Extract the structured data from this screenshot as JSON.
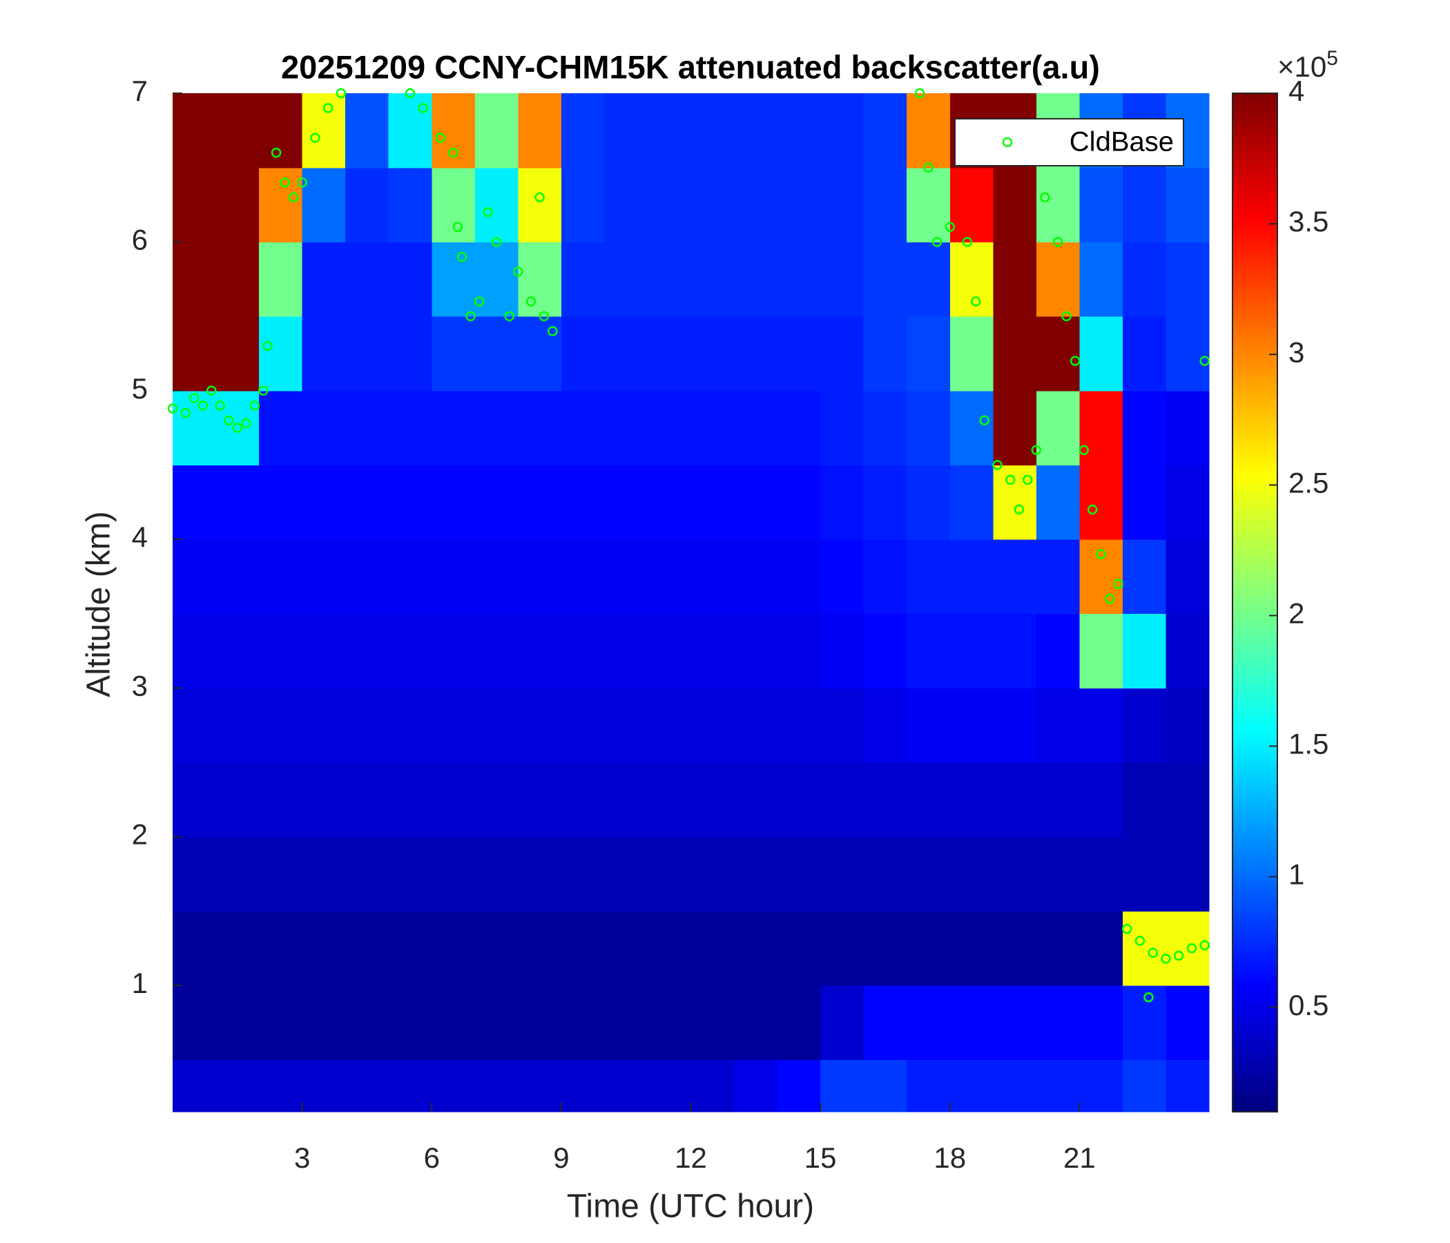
{
  "chart_data": {
    "type": "heatmap",
    "title": "20251209 CCNY-CHM15K attenuated backscatter(a.u)",
    "x_label": "Time (UTC hour)",
    "y_label": "Altitude (km)",
    "xlim": [
      0,
      24
    ],
    "ylim": [
      0.15,
      7
    ],
    "xticks": [
      3,
      6,
      9,
      12,
      15,
      18,
      21
    ],
    "yticks": [
      1,
      2,
      3,
      4,
      5,
      6,
      7
    ],
    "colormap": "jet",
    "clim": [
      0.1,
      4
    ],
    "cticks": [
      0.5,
      1,
      1.5,
      2,
      2.5,
      3,
      3.5,
      4
    ],
    "cbar_multiplier": "×10",
    "cbar_exponent": "5",
    "xbins": [
      0,
      1,
      2,
      3,
      4,
      5,
      6,
      7,
      8,
      9,
      10,
      11,
      12,
      13,
      14,
      15,
      16,
      17,
      18,
      19,
      20,
      21,
      22,
      23,
      24
    ],
    "ybins": [
      0.15,
      0.5,
      1,
      1.5,
      2,
      2.5,
      3,
      3.5,
      4,
      4.5,
      5,
      5.5,
      6,
      6.5,
      7
    ],
    "z": [
      [
        0.4,
        0.4,
        0.4,
        0.4,
        0.4,
        0.4,
        0.4,
        0.4,
        0.4,
        0.4,
        0.4,
        0.4,
        0.4,
        0.5,
        0.6,
        0.8,
        0.8,
        0.7,
        0.7,
        0.7,
        0.7,
        0.7,
        0.8,
        0.7
      ],
      [
        0.2,
        0.2,
        0.2,
        0.2,
        0.2,
        0.2,
        0.2,
        0.2,
        0.2,
        0.2,
        0.2,
        0.2,
        0.2,
        0.2,
        0.2,
        0.4,
        0.6,
        0.6,
        0.6,
        0.6,
        0.6,
        0.6,
        0.7,
        0.6
      ],
      [
        0.2,
        0.2,
        0.2,
        0.2,
        0.2,
        0.2,
        0.2,
        0.2,
        0.2,
        0.2,
        0.2,
        0.2,
        0.2,
        0.2,
        0.2,
        0.2,
        0.2,
        0.2,
        0.2,
        0.2,
        0.2,
        0.2,
        2.5,
        2.5
      ],
      [
        0.3,
        0.3,
        0.3,
        0.3,
        0.3,
        0.3,
        0.3,
        0.3,
        0.3,
        0.3,
        0.3,
        0.3,
        0.3,
        0.3,
        0.3,
        0.3,
        0.3,
        0.3,
        0.3,
        0.3,
        0.3,
        0.3,
        0.3,
        0.3
      ],
      [
        0.4,
        0.4,
        0.4,
        0.4,
        0.4,
        0.4,
        0.4,
        0.4,
        0.4,
        0.4,
        0.4,
        0.4,
        0.4,
        0.4,
        0.4,
        0.4,
        0.4,
        0.4,
        0.4,
        0.4,
        0.4,
        0.4,
        0.3,
        0.3
      ],
      [
        0.45,
        0.45,
        0.45,
        0.45,
        0.45,
        0.45,
        0.45,
        0.45,
        0.45,
        0.45,
        0.45,
        0.45,
        0.45,
        0.45,
        0.45,
        0.45,
        0.5,
        0.55,
        0.55,
        0.55,
        0.5,
        0.5,
        0.4,
        0.35
      ],
      [
        0.5,
        0.5,
        0.5,
        0.5,
        0.5,
        0.5,
        0.5,
        0.5,
        0.5,
        0.5,
        0.5,
        0.5,
        0.5,
        0.5,
        0.5,
        0.55,
        0.6,
        0.65,
        0.65,
        0.65,
        0.6,
        2.0,
        1.5,
        0.4
      ],
      [
        0.55,
        0.55,
        0.55,
        0.55,
        0.55,
        0.55,
        0.55,
        0.55,
        0.55,
        0.55,
        0.55,
        0.55,
        0.55,
        0.55,
        0.55,
        0.6,
        0.65,
        0.7,
        0.7,
        0.7,
        0.7,
        3.0,
        0.8,
        0.45
      ],
      [
        0.6,
        0.6,
        0.6,
        0.6,
        0.6,
        0.6,
        0.6,
        0.6,
        0.6,
        0.6,
        0.6,
        0.6,
        0.6,
        0.6,
        0.6,
        0.65,
        0.7,
        0.75,
        0.8,
        2.5,
        1.0,
        3.5,
        0.6,
        0.5
      ],
      [
        1.5,
        1.5,
        0.65,
        0.65,
        0.65,
        0.65,
        0.65,
        0.65,
        0.65,
        0.65,
        0.65,
        0.65,
        0.65,
        0.65,
        0.65,
        0.7,
        0.75,
        0.8,
        1.0,
        4,
        2.0,
        3.5,
        0.6,
        0.55
      ],
      [
        4,
        4,
        1.5,
        0.7,
        0.7,
        0.7,
        0.8,
        0.8,
        0.8,
        0.7,
        0.7,
        0.7,
        0.7,
        0.7,
        0.7,
        0.7,
        0.8,
        0.85,
        2.0,
        4,
        4,
        1.5,
        0.7,
        0.8
      ],
      [
        4,
        4,
        2.0,
        0.7,
        0.7,
        0.7,
        1.2,
        1.2,
        2.0,
        0.75,
        0.75,
        0.75,
        0.75,
        0.75,
        0.75,
        0.75,
        0.8,
        0.8,
        2.5,
        4,
        3.0,
        1.0,
        0.75,
        0.8
      ],
      [
        4,
        4,
        3.0,
        1.0,
        0.75,
        0.8,
        2.0,
        1.5,
        2.5,
        0.8,
        0.75,
        0.75,
        0.75,
        0.75,
        0.75,
        0.75,
        0.8,
        2.0,
        3.5,
        4,
        2.0,
        0.9,
        0.8,
        0.9
      ],
      [
        4,
        4,
        4,
        2.5,
        0.9,
        1.5,
        3.0,
        2.0,
        3.0,
        0.8,
        0.75,
        0.75,
        0.75,
        0.75,
        0.75,
        0.75,
        0.8,
        3.0,
        4,
        4,
        2.0,
        1.0,
        0.8,
        1.0
      ]
    ],
    "series": [
      {
        "name": "CldBase",
        "type": "scatter",
        "color": "#00ff00",
        "x": [
          0.0,
          0.3,
          0.5,
          0.7,
          0.9,
          1.1,
          1.3,
          1.5,
          1.7,
          1.9,
          2.1,
          2.2,
          2.4,
          2.6,
          2.8,
          3.0,
          3.3,
          3.6,
          3.9,
          5.5,
          5.8,
          6.2,
          6.5,
          6.6,
          6.7,
          6.9,
          7.1,
          7.3,
          7.5,
          7.8,
          8.0,
          8.3,
          8.6,
          8.8,
          8.5,
          17.3,
          17.5,
          17.7,
          18.0,
          18.4,
          18.6,
          18.8,
          19.1,
          19.4,
          19.6,
          19.8,
          20.0,
          20.2,
          20.5,
          20.7,
          20.9,
          21.1,
          21.3,
          21.5,
          21.7,
          21.9,
          22.1,
          22.4,
          22.7,
          23.0,
          23.3,
          23.6,
          23.9,
          22.6,
          23.9
        ],
        "y": [
          4.88,
          4.85,
          4.95,
          4.9,
          5.0,
          4.9,
          4.8,
          4.75,
          4.78,
          4.9,
          5.0,
          5.3,
          6.6,
          6.4,
          6.3,
          6.4,
          6.7,
          6.9,
          7.0,
          7.0,
          6.9,
          6.7,
          6.6,
          6.1,
          5.9,
          5.5,
          5.6,
          6.2,
          6.0,
          5.5,
          5.8,
          5.6,
          5.5,
          5.4,
          6.3,
          7.0,
          6.5,
          6.0,
          6.1,
          6.0,
          5.6,
          4.8,
          4.5,
          4.4,
          4.2,
          4.4,
          4.6,
          6.3,
          6.0,
          5.5,
          5.2,
          4.6,
          4.2,
          3.9,
          3.6,
          3.7,
          1.38,
          1.3,
          1.22,
          1.18,
          1.2,
          1.25,
          1.27,
          0.92,
          5.2
        ]
      }
    ],
    "legend": "northeast"
  }
}
